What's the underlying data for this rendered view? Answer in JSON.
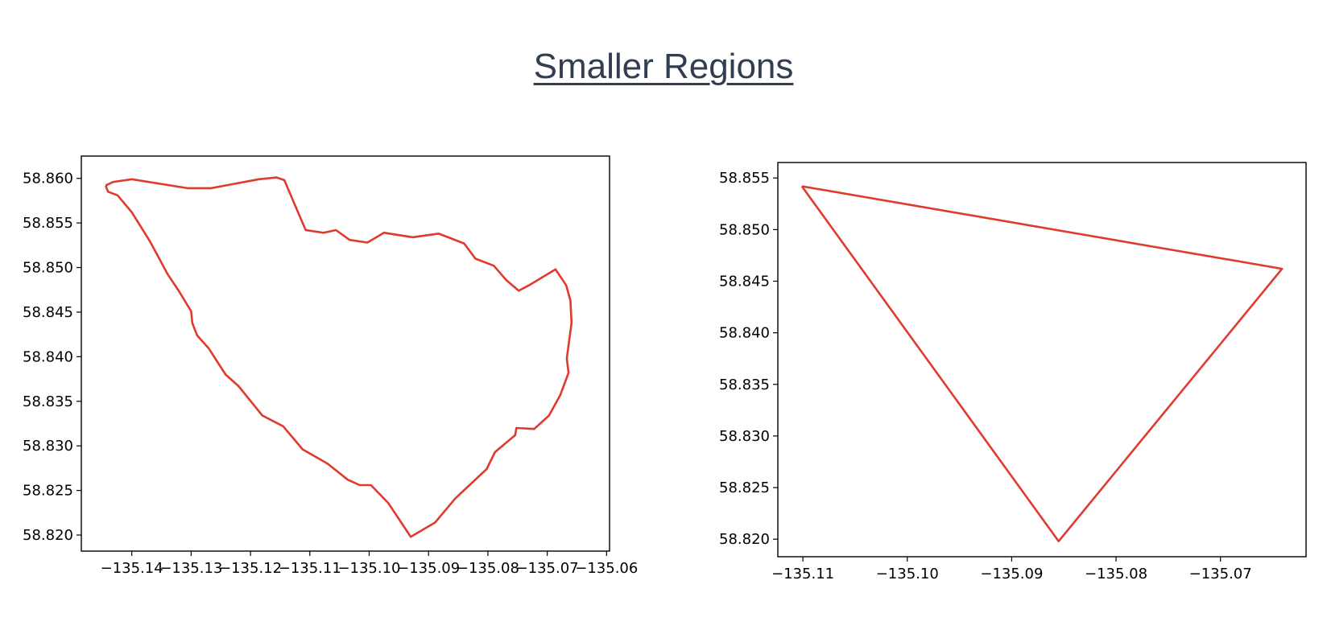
{
  "page": {
    "title": "Smaller Regions"
  },
  "colors": {
    "line": "#e03a2e",
    "title": "#333d51",
    "axes": "#000000"
  },
  "chart_data": [
    {
      "type": "line",
      "title": "",
      "xlabel": "",
      "ylabel": "",
      "xlim": [
        -135.1485,
        -135.0595
      ],
      "ylim": [
        58.8182,
        58.8625
      ],
      "xticks": [
        -135.14,
        -135.13,
        -135.12,
        -135.11,
        -135.1,
        -135.09,
        -135.08,
        -135.07,
        -135.06
      ],
      "xtick_labels": [
        "−135.14",
        "−135.13",
        "−135.12",
        "−135.11",
        "−135.10",
        "−135.09",
        "−135.08",
        "−135.07",
        "−135.06"
      ],
      "yticks": [
        58.82,
        58.825,
        58.83,
        58.835,
        58.84,
        58.845,
        58.85,
        58.855,
        58.86
      ],
      "ytick_labels": [
        "58.820",
        "58.825",
        "58.830",
        "58.835",
        "58.840",
        "58.845",
        "58.850",
        "58.855",
        "58.860"
      ],
      "grid": false,
      "series": [
        {
          "x": [
            -135.1444,
            -135.1431,
            -135.14,
            -135.1306,
            -135.1266,
            -135.1186,
            -135.1156,
            -135.1143,
            -135.1107,
            -135.1077,
            -135.1056,
            -135.1033,
            -135.1003,
            -135.0975,
            -135.0927,
            -135.0883,
            -135.084,
            -135.0821,
            -135.079,
            -135.0769,
            -135.0748,
            -135.0731,
            -135.0686,
            -135.0668,
            -135.0661,
            -135.0659,
            -135.0667,
            -135.0664,
            -135.0678,
            -135.0697,
            -135.0722,
            -135.0752,
            -135.0754,
            -135.0788,
            -135.0802,
            -135.0855,
            -135.0889,
            -135.093,
            -135.0968,
            -135.0997,
            -135.1016,
            -135.1036,
            -135.107,
            -135.1112,
            -135.1145,
            -135.118,
            -135.122,
            -135.1242,
            -135.127,
            -135.129,
            -135.1298,
            -135.13,
            -135.132,
            -135.134,
            -135.137,
            -135.14,
            -135.1424,
            -135.144,
            -135.1444
          ],
          "y": [
            58.8592,
            58.8596,
            58.8599,
            58.8589,
            58.8589,
            58.8599,
            58.8601,
            58.8598,
            58.8542,
            58.8539,
            58.8542,
            58.8531,
            58.8528,
            58.8539,
            58.8534,
            58.8538,
            58.8527,
            58.851,
            58.8502,
            58.8486,
            58.8474,
            58.848,
            58.8498,
            58.848,
            58.8463,
            58.8438,
            58.8398,
            58.8382,
            58.8357,
            58.8334,
            58.8319,
            58.832,
            58.8312,
            58.8293,
            58.8274,
            58.8241,
            58.8214,
            58.8198,
            58.8236,
            58.8256,
            58.8256,
            58.8262,
            58.828,
            58.8296,
            58.8322,
            58.8334,
            58.8367,
            58.838,
            58.8409,
            58.8424,
            58.8438,
            58.8451,
            58.8473,
            58.8493,
            58.853,
            58.8562,
            58.8581,
            58.8585,
            58.8592
          ]
        }
      ]
    },
    {
      "type": "line",
      "title": "",
      "xlabel": "",
      "ylabel": "",
      "xlim": [
        -135.1124,
        -135.0618
      ],
      "ylim": [
        58.8183,
        58.8565
      ],
      "xticks": [
        -135.11,
        -135.1,
        -135.09,
        -135.08,
        -135.07
      ],
      "xtick_labels": [
        "−135.11",
        "−135.10",
        "−135.09",
        "−135.08",
        "−135.07"
      ],
      "yticks": [
        58.82,
        58.825,
        58.83,
        58.835,
        58.84,
        58.845,
        58.85,
        58.855
      ],
      "ytick_labels": [
        "58.820",
        "58.825",
        "58.830",
        "58.835",
        "58.840",
        "58.845",
        "58.850",
        "58.855"
      ],
      "grid": false,
      "series": [
        {
          "x": [
            -135.1101,
            -135.0641,
            -135.0855,
            -135.1101
          ],
          "y": [
            58.8542,
            58.8462,
            58.8198,
            58.8542
          ]
        }
      ]
    }
  ]
}
